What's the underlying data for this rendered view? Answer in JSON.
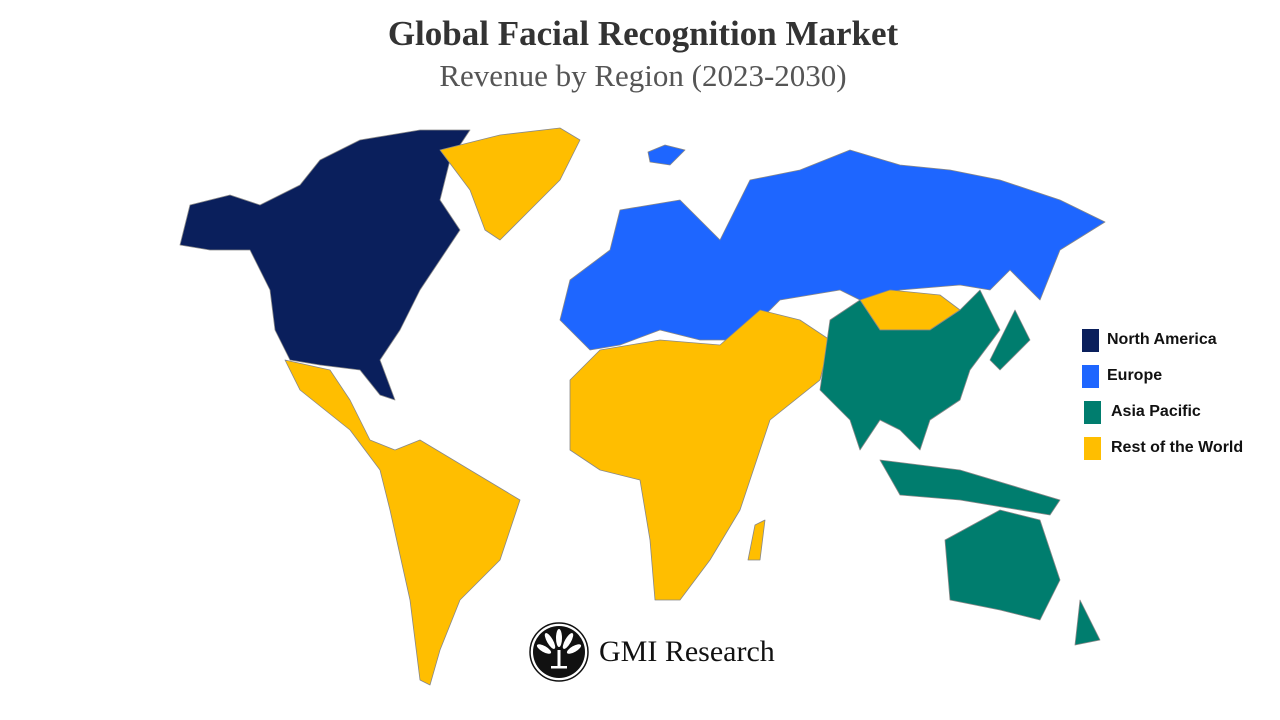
{
  "title": "Global Facial Recognition Market",
  "subtitle": "Revenue by Region (2023-2030)",
  "legend": [
    {
      "label": "North America",
      "color": "#0a1f5c"
    },
    {
      "label": "Europe",
      "color": "#1e66ff"
    },
    {
      "label": "Asia Pacific",
      "color": "#007d6e"
    },
    {
      "label": "Rest of the World",
      "color": "#ffbe00"
    }
  ],
  "logo": {
    "text": "GMI Research",
    "icon": "fan-tree-emblem-icon"
  }
}
